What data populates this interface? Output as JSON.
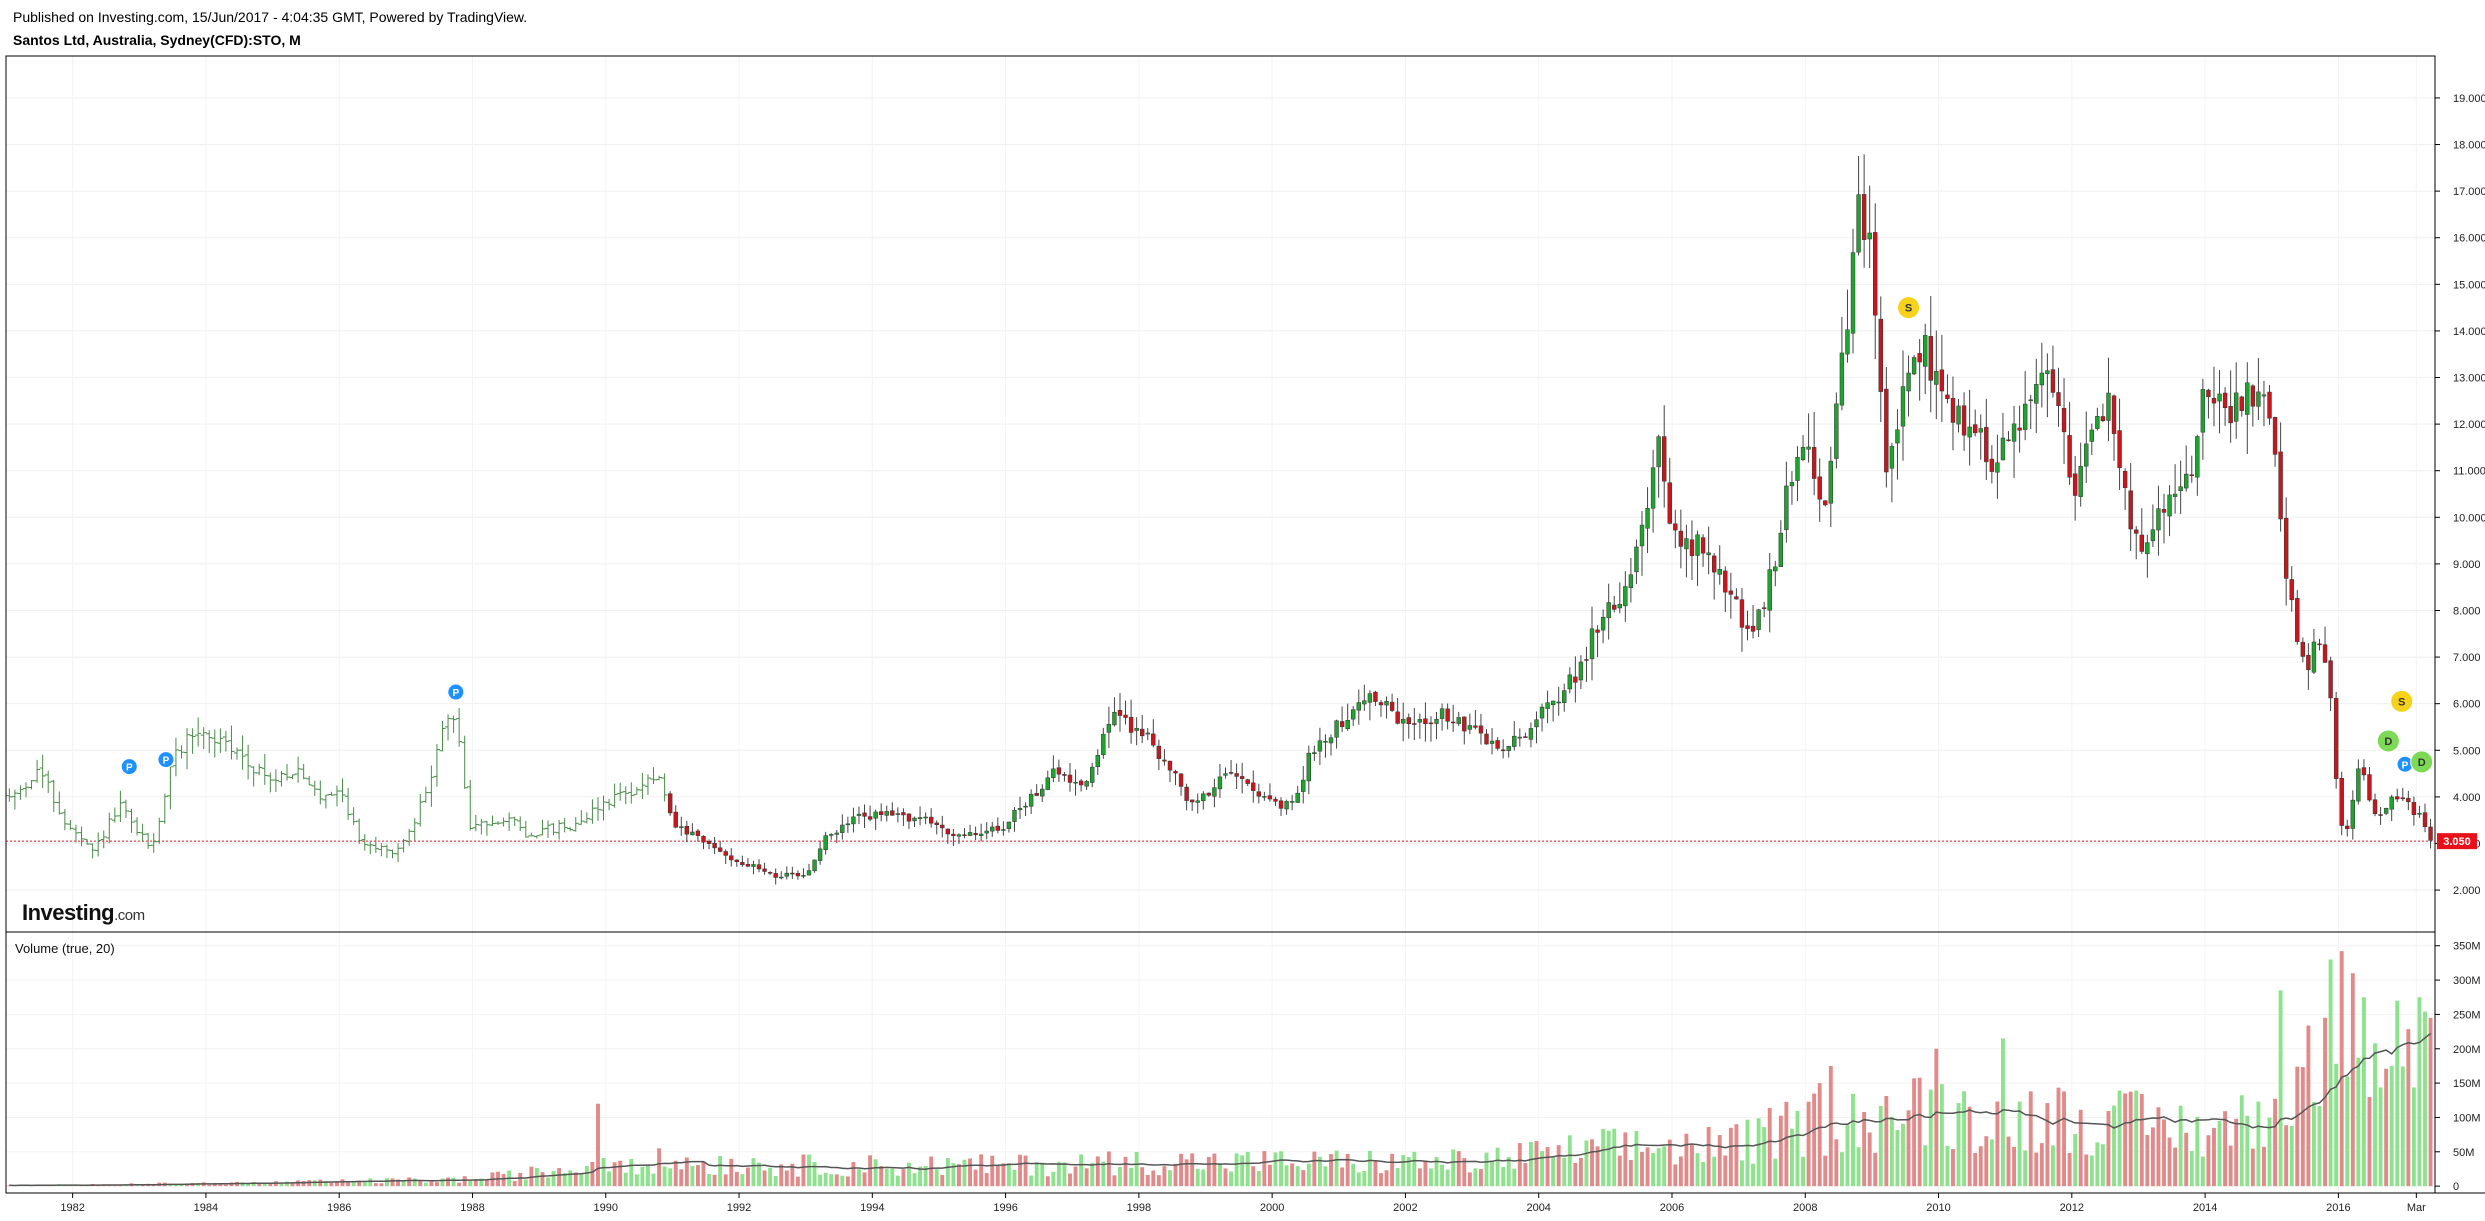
{
  "header": {
    "published": "Published on Investing.com, 15/Jun/2017 - 4:04:35 GMT, Powered by TradingView.",
    "title": "Santos Ltd, Australia, Sydney(CFD):STO, M"
  },
  "logo": {
    "main": "Investing",
    "suffix": ".com"
  },
  "volume_label": "Volume (true, 20)",
  "colors": {
    "up": "#1fa22e",
    "down": "#c8161d",
    "early": "#4a8a4a",
    "vol_up": "#8ee28e",
    "vol_down": "#e08a8a",
    "ma": "#555555",
    "last_price": "#e8111a",
    "dividend": "#7ed957",
    "split": "#f7d21a",
    "pubevent": "#1e90ff"
  },
  "chart_data": [
    {
      "type": "candlestick",
      "x_ticks": [
        "1982",
        "1984",
        "1986",
        "1988",
        "1990",
        "1992",
        "1994",
        "1996",
        "1998",
        "2000",
        "2002",
        "2004",
        "2006",
        "2008",
        "2010",
        "2012",
        "2014",
        "2016",
        "Mar"
      ],
      "xlim": [
        1981.0,
        2017.45
      ],
      "y_ticks": [
        "2.000",
        "3.000",
        "4.000",
        "5.000",
        "6.000",
        "7.000",
        "8.000",
        "9.000",
        "10.000",
        "11.000",
        "12.000",
        "13.000",
        "14.000",
        "15.000",
        "16.000",
        "17.000",
        "18.000",
        "19.000"
      ],
      "ylim": [
        1.1,
        19.9
      ],
      "last_price": 3.05,
      "last_price_label": "3.050",
      "anchors": [
        [
          1981.1,
          4.0
        ],
        [
          1981.5,
          4.6
        ],
        [
          1981.9,
          3.4
        ],
        [
          1982.3,
          2.8
        ],
        [
          1982.7,
          3.8
        ],
        [
          1983.0,
          3.2
        ],
        [
          1983.2,
          2.9
        ],
        [
          1983.5,
          4.8
        ],
        [
          1983.8,
          5.4
        ],
        [
          1984.2,
          5.2
        ],
        [
          1984.6,
          4.8
        ],
        [
          1985.0,
          4.3
        ],
        [
          1985.3,
          4.6
        ],
        [
          1985.7,
          4.0
        ],
        [
          1986.0,
          4.2
        ],
        [
          1986.3,
          3.1
        ],
        [
          1986.7,
          2.8
        ],
        [
          1987.0,
          3.0
        ],
        [
          1987.4,
          4.5
        ],
        [
          1987.6,
          5.8
        ],
        [
          1987.8,
          5.3
        ],
        [
          1987.95,
          3.3
        ],
        [
          1988.5,
          3.6
        ],
        [
          1988.8,
          3.2
        ],
        [
          1989.5,
          3.4
        ],
        [
          1990.0,
          3.9
        ],
        [
          1990.6,
          4.3
        ],
        [
          1990.8,
          4.4
        ],
        [
          1991.0,
          3.4
        ],
        [
          1991.5,
          3.0
        ],
        [
          1992.0,
          2.6
        ],
        [
          1992.6,
          2.3
        ],
        [
          1993.0,
          2.3
        ],
        [
          1993.3,
          3.1
        ],
        [
          1993.8,
          3.6
        ],
        [
          1994.5,
          3.6
        ],
        [
          1995.0,
          3.4
        ],
        [
          1995.3,
          3.1
        ],
        [
          1996.0,
          3.4
        ],
        [
          1996.7,
          4.5
        ],
        [
          1997.2,
          4.3
        ],
        [
          1997.6,
          5.8
        ],
        [
          1997.8,
          5.6
        ],
        [
          1998.2,
          5.2
        ],
        [
          1998.8,
          3.8
        ],
        [
          1999.0,
          4.1
        ],
        [
          1999.5,
          4.6
        ],
        [
          2000.0,
          3.8
        ],
        [
          2000.3,
          3.8
        ],
        [
          2000.6,
          5.0
        ],
        [
          2001.0,
          5.6
        ],
        [
          2001.5,
          6.2
        ],
        [
          2002.0,
          5.5
        ],
        [
          2002.5,
          5.8
        ],
        [
          2003.0,
          5.4
        ],
        [
          2003.5,
          5.0
        ],
        [
          2004.0,
          5.7
        ],
        [
          2004.5,
          6.5
        ],
        [
          2005.0,
          8.0
        ],
        [
          2005.3,
          8.5
        ],
        [
          2005.6,
          10.2
        ],
        [
          2005.8,
          11.5
        ],
        [
          2006.0,
          9.5
        ],
        [
          2006.5,
          9.3
        ],
        [
          2007.0,
          8.0
        ],
        [
          2007.2,
          7.3
        ],
        [
          2007.5,
          8.8
        ],
        [
          2007.8,
          11.0
        ],
        [
          2008.0,
          11.8
        ],
        [
          2008.3,
          10.2
        ],
        [
          2008.5,
          12.5
        ],
        [
          2008.8,
          16.5
        ],
        [
          2009.0,
          15.5
        ],
        [
          2009.2,
          11.0
        ],
        [
          2009.5,
          12.8
        ],
        [
          2009.8,
          13.5
        ],
        [
          2010.0,
          12.8
        ],
        [
          2010.4,
          12.0
        ],
        [
          2010.8,
          11.3
        ],
        [
          2011.2,
          12.0
        ],
        [
          2011.6,
          13.5
        ],
        [
          2011.8,
          12.5
        ],
        [
          2012.0,
          10.5
        ],
        [
          2012.3,
          11.8
        ],
        [
          2012.6,
          12.4
        ],
        [
          2012.9,
          9.3
        ],
        [
          2013.2,
          9.8
        ],
        [
          2013.5,
          10.5
        ],
        [
          2013.8,
          11.2
        ],
        [
          2014.0,
          12.9
        ],
        [
          2014.3,
          12.2
        ],
        [
          2014.7,
          12.6
        ],
        [
          2014.9,
          12.4
        ],
        [
          2015.0,
          11.8
        ],
        [
          2015.2,
          8.7
        ],
        [
          2015.5,
          6.8
        ],
        [
          2015.7,
          7.3
        ],
        [
          2015.9,
          6.2
        ],
        [
          2016.0,
          3.5
        ],
        [
          2016.1,
          3.1
        ],
        [
          2016.3,
          4.7
        ],
        [
          2016.6,
          3.5
        ],
        [
          2016.9,
          4.1
        ],
        [
          2017.2,
          3.6
        ],
        [
          2017.4,
          3.05
        ]
      ],
      "event_markers": [
        {
          "label": "P",
          "kind": "pubevent",
          "x": 1982.85,
          "y": 4.65
        },
        {
          "label": "P",
          "kind": "pubevent",
          "x": 1983.4,
          "y": 4.8
        },
        {
          "label": "P",
          "kind": "pubevent",
          "x": 1987.75,
          "y": 6.25
        },
        {
          "label": "S",
          "kind": "split",
          "x": 2009.55,
          "y": 14.5
        },
        {
          "label": "S",
          "kind": "split",
          "x": 2016.95,
          "y": 6.05
        },
        {
          "label": "D",
          "kind": "dividend",
          "x": 2016.75,
          "y": 5.2
        },
        {
          "label": "P",
          "kind": "pubevent",
          "x": 2017.0,
          "y": 4.7
        },
        {
          "label": "D",
          "kind": "dividend",
          "x": 2017.25,
          "y": 4.75
        }
      ]
    },
    {
      "type": "bar",
      "title": "Volume (true, 20)",
      "y_ticks": [
        "0",
        "50M",
        "100M",
        "150M",
        "200M",
        "250M",
        "300M",
        "350M"
      ],
      "ylim": [
        -10,
        370
      ],
      "unit": "M",
      "anchors": [
        [
          1981.0,
          1
        ],
        [
          1985.0,
          5
        ],
        [
          1988.0,
          10
        ],
        [
          1989.5,
          25
        ],
        [
          1990.0,
          40
        ],
        [
          1991.0,
          35
        ],
        [
          1993.0,
          30
        ],
        [
          1996.0,
          30
        ],
        [
          1998.0,
          35
        ],
        [
          2000.0,
          35
        ],
        [
          2003.0,
          35
        ],
        [
          2005.0,
          55
        ],
        [
          2007.0,
          60
        ],
        [
          2008.0,
          90
        ],
        [
          2009.0,
          100
        ],
        [
          2010.0,
          110
        ],
        [
          2011.0,
          100
        ],
        [
          2012.0,
          100
        ],
        [
          2013.0,
          90
        ],
        [
          2014.0,
          80
        ],
        [
          2015.0,
          100
        ],
        [
          2015.5,
          150
        ],
        [
          2016.0,
          230
        ],
        [
          2016.5,
          230
        ],
        [
          2017.0,
          200
        ],
        [
          2017.4,
          180
        ]
      ],
      "spikes": [
        [
          1989.85,
          120
        ],
        [
          2008.2,
          150
        ],
        [
          2008.4,
          175
        ],
        [
          2010.0,
          200
        ],
        [
          2011.0,
          215
        ],
        [
          2015.1,
          285
        ],
        [
          2015.9,
          330
        ],
        [
          2016.2,
          310
        ],
        [
          2016.4,
          275
        ],
        [
          2016.9,
          270
        ],
        [
          2017.2,
          275
        ],
        [
          2017.35,
          245
        ]
      ],
      "ma_period": 20
    }
  ]
}
